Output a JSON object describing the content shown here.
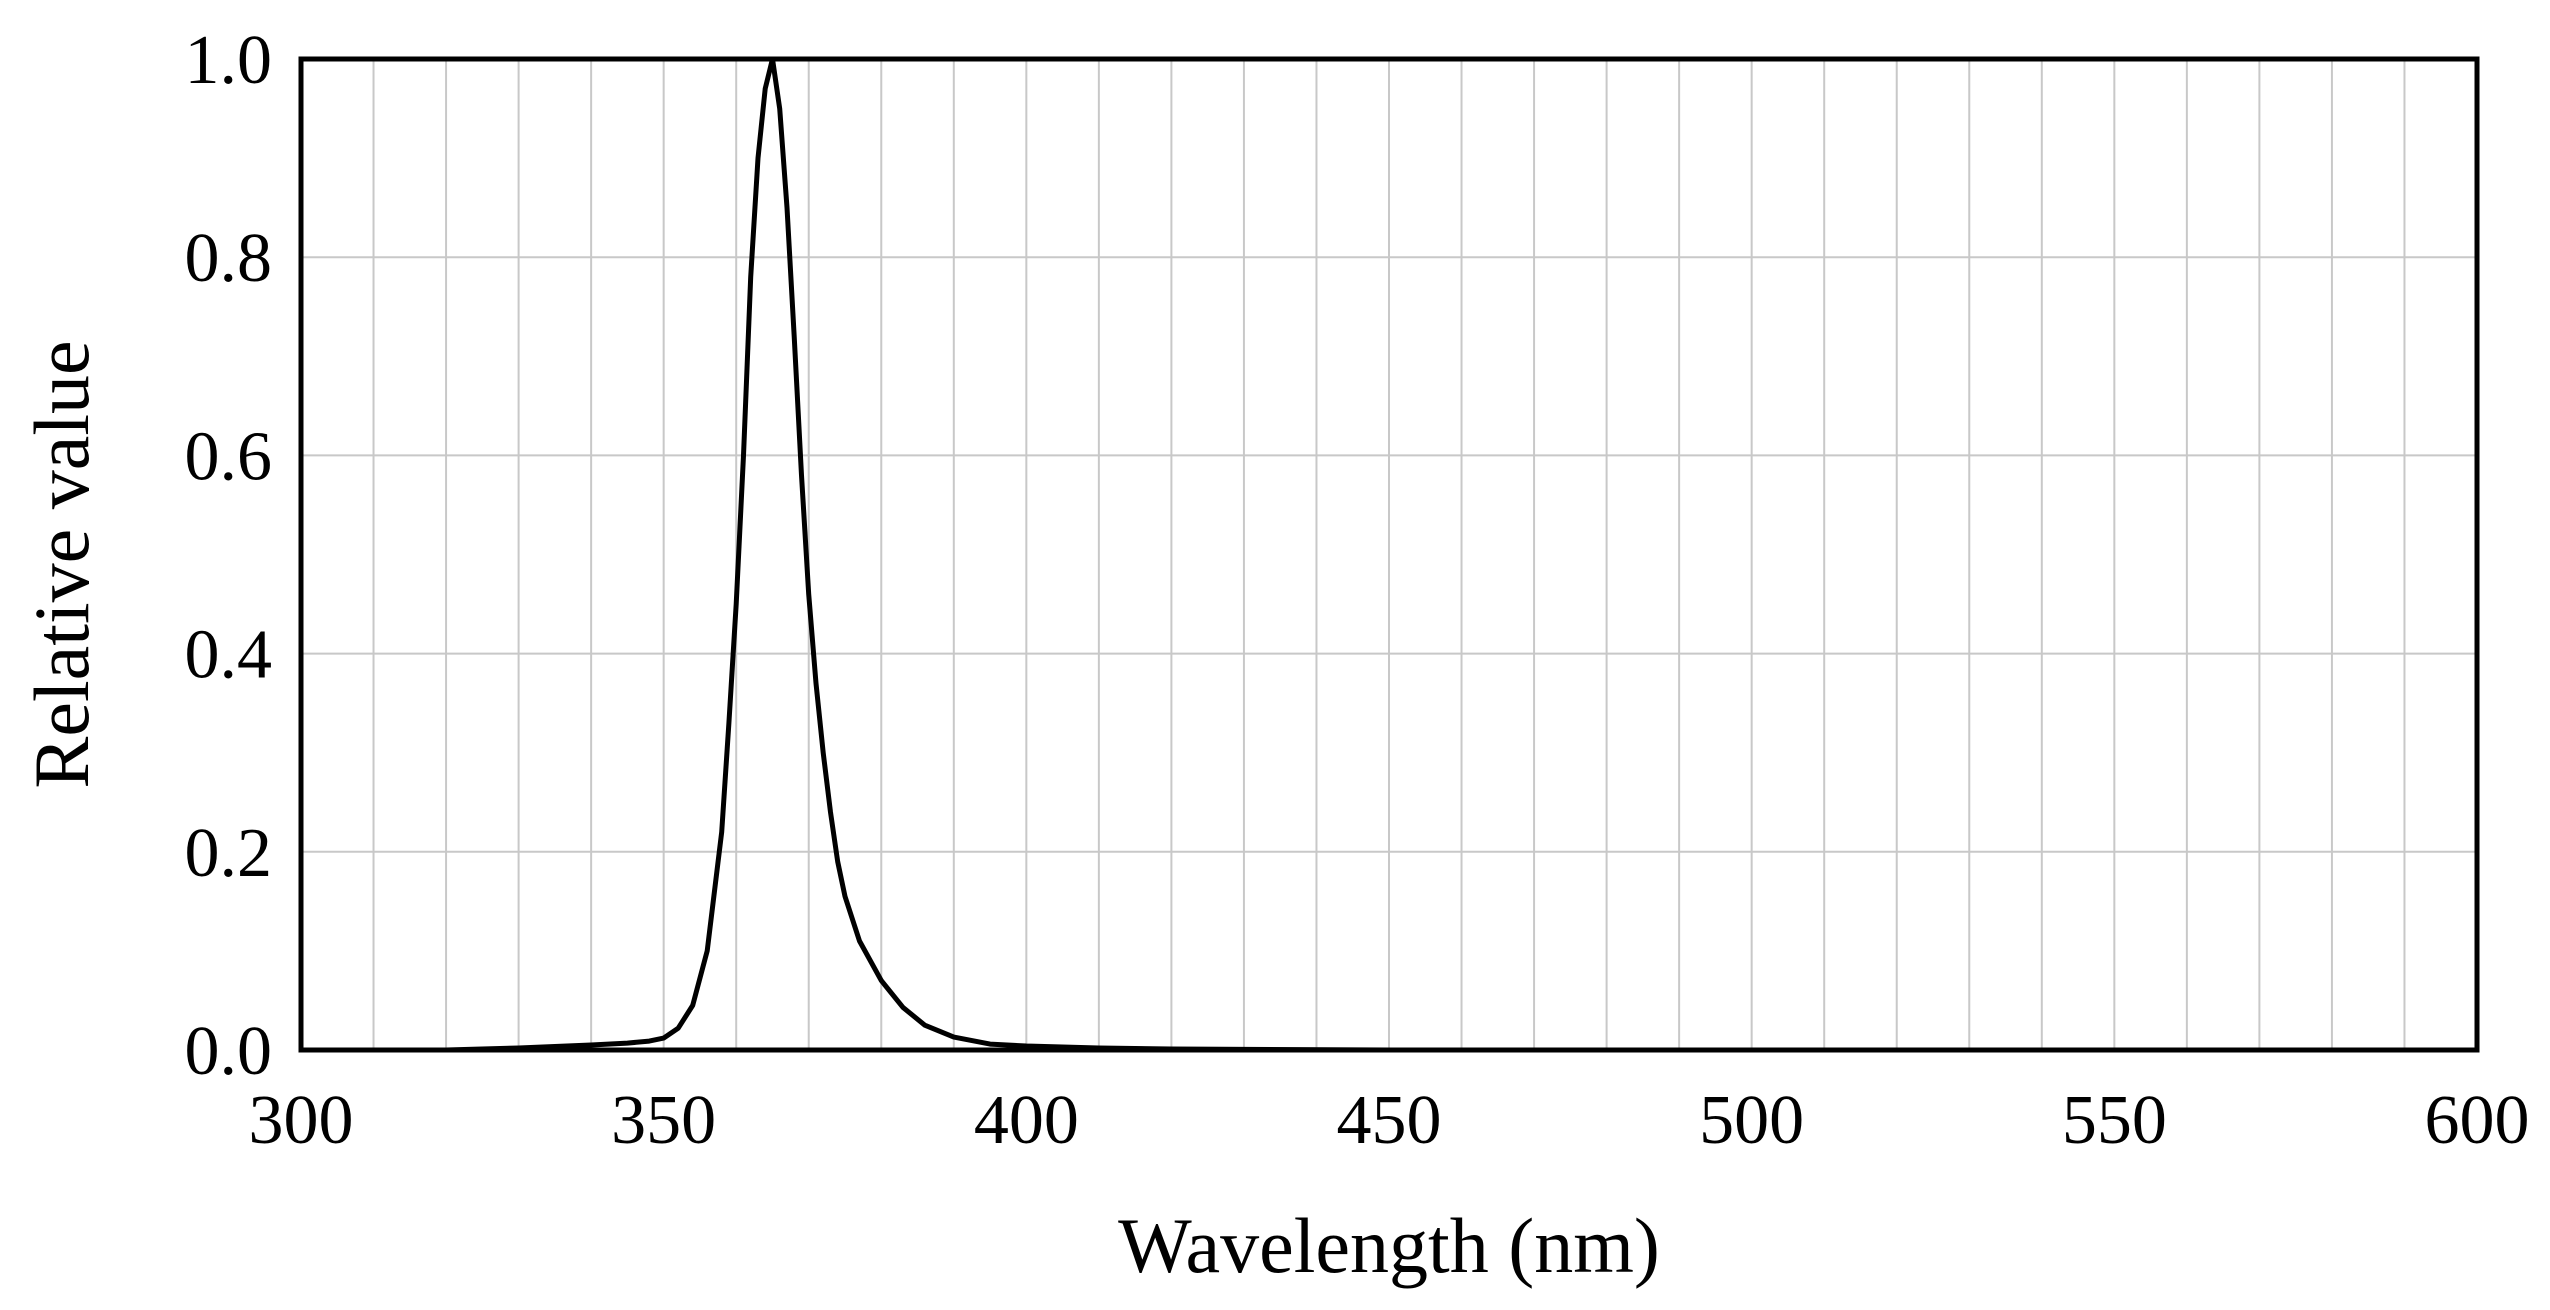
{
  "chart_data": {
    "type": "line",
    "title": "",
    "xlabel": "Wavelength (nm)",
    "ylabel": "Relative value",
    "xlim": [
      300,
      600
    ],
    "ylim": [
      0.0,
      1.0
    ],
    "grid": true,
    "x_grid_step": 10,
    "y_grid_step": 0.2,
    "x_ticks": [
      300,
      350,
      400,
      450,
      500,
      550,
      600
    ],
    "x_tick_labels": [
      "300",
      "350",
      "400",
      "450",
      "500",
      "550",
      "600"
    ],
    "y_ticks": [
      0.0,
      0.2,
      0.4,
      0.6,
      0.8,
      1.0
    ],
    "y_tick_labels": [
      "0.0",
      "0.2",
      "0.4",
      "0.6",
      "0.8",
      "1.0"
    ],
    "colors": {
      "line": "#000000",
      "grid": "#c8c8c8",
      "frame": "#000000"
    },
    "series": [
      {
        "name": "Relative value",
        "x": [
          320,
          330,
          340,
          345,
          348,
          350,
          352,
          354,
          356,
          358,
          359,
          360,
          361,
          362,
          363,
          364,
          365,
          366,
          367,
          368,
          369,
          370,
          371,
          372,
          373,
          374,
          375,
          377,
          380,
          383,
          386,
          390,
          395,
          400,
          410,
          420,
          450,
          500,
          600
        ],
        "y": [
          0.0,
          0.002,
          0.005,
          0.007,
          0.009,
          0.012,
          0.022,
          0.045,
          0.1,
          0.22,
          0.33,
          0.45,
          0.6,
          0.78,
          0.9,
          0.97,
          1.0,
          0.95,
          0.85,
          0.72,
          0.58,
          0.46,
          0.37,
          0.3,
          0.24,
          0.19,
          0.155,
          0.11,
          0.07,
          0.043,
          0.025,
          0.013,
          0.006,
          0.004,
          0.002,
          0.001,
          0.0,
          0.0,
          0.0
        ]
      }
    ]
  }
}
